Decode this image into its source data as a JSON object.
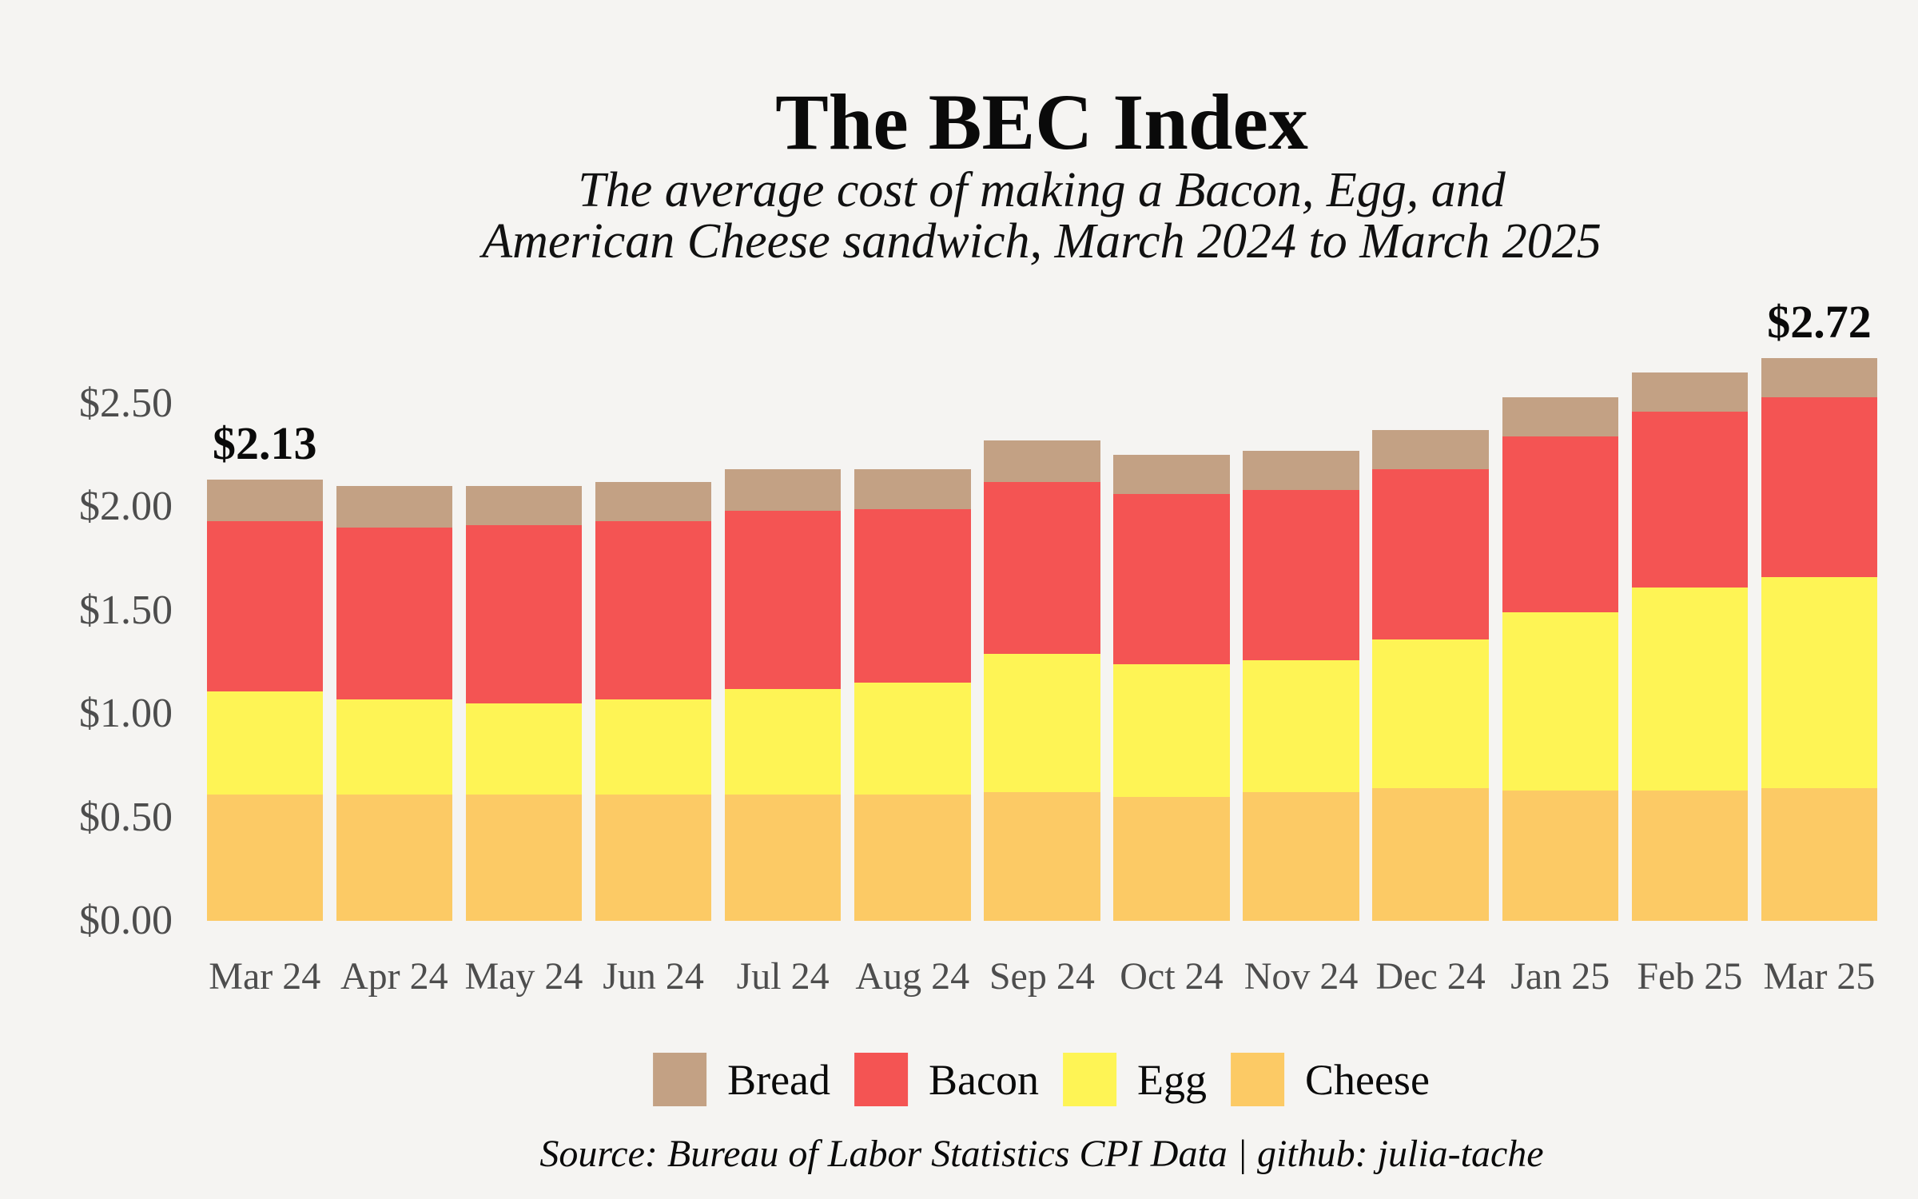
{
  "page": {
    "background": "#F5F4F2"
  },
  "header": {
    "title": "The BEC Index",
    "subtitle_line1": "The average cost of making a Bacon, Egg, and",
    "subtitle_line2": "American Cheese sandwich, March 2024 to March 2025"
  },
  "annotations": {
    "first_bar_total": "$2.13",
    "last_bar_total": "$2.72"
  },
  "y_axis": {
    "tick_labels": [
      "$0.00",
      "$0.50",
      "$1.00",
      "$1.50",
      "$2.00",
      "$2.50"
    ],
    "tick_values": [
      0,
      0.5,
      1.0,
      1.5,
      2.0,
      2.5
    ]
  },
  "legend": {
    "items": [
      {
        "label": "Bread",
        "color": "#C3A184"
      },
      {
        "label": "Bacon",
        "color": "#F45453"
      },
      {
        "label": "Egg",
        "color": "#FEF455"
      },
      {
        "label": "Cheese",
        "color": "#FCCA65"
      }
    ]
  },
  "source": "Source: Bureau of Labor Statistics CPI Data | github: julia-tache",
  "colors": {
    "background": "#F5F4F2",
    "axis_text": "#4D4D4D",
    "text": "#0A0A0A",
    "bread": "#C3A184",
    "bacon": "#F45453",
    "egg": "#FEF455",
    "cheese": "#FCCA65"
  },
  "chart_data": {
    "type": "bar",
    "stacked": true,
    "title": "The BEC Index",
    "subtitle": "The average cost of making a Bacon, Egg, and American Cheese sandwich, March 2024 to March 2025",
    "xlabel": "",
    "ylabel": "",
    "ylim": [
      0,
      2.8
    ],
    "grid": false,
    "legend_position": "bottom",
    "categories": [
      "Mar 24",
      "Apr 24",
      "May 24",
      "Jun 24",
      "Jul 24",
      "Aug 24",
      "Sep 24",
      "Oct 24",
      "Nov 24",
      "Dec 24",
      "Jan 25",
      "Feb 25",
      "Mar 25"
    ],
    "series": [
      {
        "name": "Cheese",
        "color": "#FCCA65",
        "values": [
          0.61,
          0.61,
          0.61,
          0.61,
          0.61,
          0.61,
          0.62,
          0.6,
          0.62,
          0.64,
          0.63,
          0.63,
          0.64
        ]
      },
      {
        "name": "Egg",
        "color": "#FEF455",
        "values": [
          0.5,
          0.46,
          0.44,
          0.46,
          0.51,
          0.54,
          0.67,
          0.64,
          0.64,
          0.72,
          0.86,
          0.98,
          1.02
        ]
      },
      {
        "name": "Bacon",
        "color": "#F45453",
        "values": [
          0.82,
          0.83,
          0.86,
          0.86,
          0.86,
          0.84,
          0.83,
          0.82,
          0.82,
          0.82,
          0.85,
          0.85,
          0.87
        ]
      },
      {
        "name": "Bread",
        "color": "#C3A184",
        "values": [
          0.2,
          0.2,
          0.19,
          0.19,
          0.2,
          0.19,
          0.2,
          0.19,
          0.19,
          0.19,
          0.19,
          0.19,
          0.19
        ]
      }
    ],
    "totals": [
      2.13,
      2.1,
      2.1,
      2.12,
      2.18,
      2.18,
      2.32,
      2.25,
      2.27,
      2.37,
      2.53,
      2.65,
      2.72
    ],
    "annotated_totals": {
      "Mar 24": "$2.13",
      "Mar 25": "$2.72"
    }
  }
}
